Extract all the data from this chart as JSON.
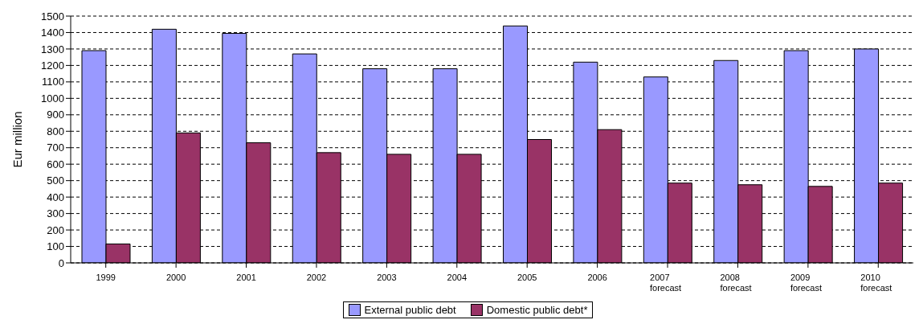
{
  "chart_data": {
    "type": "bar",
    "ylabel": "Eur million",
    "categories": [
      "1999",
      "2000",
      "2001",
      "2002",
      "2003",
      "2004",
      "2005",
      "2006",
      "2007\nforecast",
      "2008\nforecast",
      "2009\nforecast",
      "2010\nforecast"
    ],
    "series": [
      {
        "name": "External public debt",
        "color": "#9999ff",
        "values": [
          1290,
          1420,
          1395,
          1270,
          1180,
          1180,
          1440,
          1220,
          1130,
          1230,
          1290,
          1300
        ]
      },
      {
        "name": "Domestic public debt*",
        "color": "#993366",
        "values": [
          115,
          790,
          730,
          670,
          660,
          660,
          750,
          810,
          485,
          475,
          465,
          485
        ]
      }
    ],
    "ylim": [
      0,
      1500
    ],
    "yticks": [
      0,
      100,
      200,
      300,
      400,
      500,
      600,
      700,
      800,
      900,
      1000,
      1100,
      1200,
      1300,
      1400,
      1500
    ],
    "grid": "y",
    "legend": "bottom"
  }
}
